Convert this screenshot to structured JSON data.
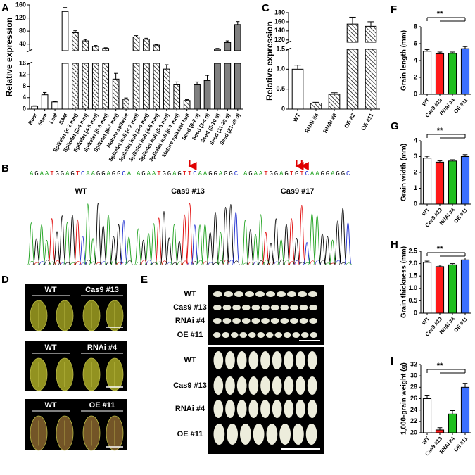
{
  "panel_labels": [
    "A",
    "B",
    "C",
    "D",
    "E",
    "F",
    "G",
    "H",
    "I"
  ],
  "chart_data": [
    {
      "type": "bar",
      "y_label": "Relative expression",
      "categories": [
        "Root",
        "Stem",
        "Leaf",
        "SAM",
        "Spikelet (< 2 mm)",
        "Spikelet (2-4 mm)",
        "Spikelet (4-5 mm)",
        "Spikelet (5-6 mm)",
        "Spikelet (6-7 mm)",
        "Mature spikelet",
        "Spikelet hull (< 2 mm)",
        "Spikelet hull (2-4 mm)",
        "Spikelet hull (4-5 mm)",
        "Spikelet hull (5-6 mm)",
        "Spikelet hull (6-7 mm)",
        "Mature spikelet hull",
        "Seed (0-2 d)",
        "Seed (3-4 d)",
        "Seed (5-10 d)",
        "Seed (11-20 d)",
        "Seed (21-29 d)"
      ],
      "values": [
        1,
        5,
        2.5,
        140,
        75,
        50,
        33,
        27,
        10.5,
        3.5,
        62,
        55,
        37,
        14,
        8.5,
        3,
        8.5,
        10,
        25,
        45,
        100
      ],
      "errors": [
        0.15,
        0.8,
        0.2,
        12,
        6,
        4,
        3,
        2,
        2,
        0.4,
        4,
        3,
        2,
        1.5,
        1,
        0.3,
        1,
        1.8,
        2,
        5,
        9
      ],
      "fills": [
        "white",
        "white",
        "white",
        "white",
        "hatch",
        "hatch",
        "hatch",
        "hatch",
        "hatch",
        "hatch",
        "hatch",
        "hatch",
        "hatch",
        "hatch",
        "hatch",
        "hatch",
        "gray",
        "gray",
        "gray",
        "gray",
        "gray"
      ],
      "broken_axis": [
        {
          "ylim": [
            0,
            16
          ],
          "yticks": [
            0,
            4,
            8,
            12,
            16
          ]
        },
        {
          "ylim": [
            20,
            160
          ],
          "yticks": [
            40,
            80,
            120,
            160
          ]
        }
      ]
    },
    {
      "type": "bar",
      "y_label": "Relative expression",
      "categories": [
        "WT",
        "RNAi #4",
        "RNAi #8",
        "OE #2",
        "OE #11"
      ],
      "values": [
        1,
        0.15,
        0.37,
        155,
        150
      ],
      "errors": [
        0.1,
        0.02,
        0.04,
        15,
        10
      ],
      "fills": [
        "white",
        "hatch",
        "hatch",
        "hatch",
        "hatch"
      ],
      "broken_axis": [
        {
          "ylim": [
            0,
            1.5
          ],
          "yticks": [
            0,
            0.5,
            {
              "value": 1,
              "label": "1.0"
            },
            1.5
          ]
        },
        {
          "ylim": [
            115,
            180
          ],
          "yticks": [
            120,
            140,
            160,
            180
          ]
        }
      ]
    },
    {
      "type": "bar",
      "y_label": "Grain length (mm)",
      "categories": [
        "WT",
        "Cas9 #13",
        "RNAi #4",
        "OE #11"
      ],
      "values": [
        5.1,
        4.8,
        4.85,
        5.4
      ],
      "errors": [
        0.2,
        0.2,
        0.15,
        0.25
      ],
      "colors": [
        "#ffffff",
        "#ff1a1a",
        "#1fbf1f",
        "#3b6fff"
      ],
      "ylim": [
        0,
        8
      ],
      "yticks": [
        0,
        2,
        4,
        6,
        8
      ],
      "annotation": "**"
    },
    {
      "type": "bar",
      "y_label": "Grain width (mm)",
      "categories": [
        "WT",
        "Cas9 #13",
        "RNAi #4",
        "OE #11"
      ],
      "values": [
        2.9,
        2.65,
        2.72,
        3.0
      ],
      "errors": [
        0.12,
        0.08,
        0.08,
        0.12
      ],
      "colors": [
        "#ffffff",
        "#ff1a1a",
        "#1fbf1f",
        "#3b6fff"
      ],
      "ylim": [
        0,
        4
      ],
      "yticks": [
        0,
        1,
        2,
        3,
        4
      ],
      "annotation": "**"
    },
    {
      "type": "bar",
      "y_label": "Grain thickness (mm)",
      "categories": [
        "WT",
        "Cas9 #13",
        "RNAi #4",
        "OE #11"
      ],
      "values": [
        2.05,
        1.88,
        1.95,
        2.15
      ],
      "errors": [
        0.05,
        0.06,
        0.05,
        0.08
      ],
      "colors": [
        "#ffffff",
        "#ff1a1a",
        "#1fbf1f",
        "#3b6fff"
      ],
      "ylim": [
        0,
        2.5
      ],
      "yticks": [
        0,
        0.5,
        {
          "value": 1,
          "label": "1.0"
        },
        1.5,
        {
          "value": 2,
          "label": "2.0"
        },
        2.5
      ],
      "annotation": "**"
    },
    {
      "type": "bar",
      "y_label": "1,000-grain weight (g)",
      "categories": [
        "WT",
        "Cas9 #13",
        "RNAi #4",
        "OE #11"
      ],
      "values": [
        26,
        20.5,
        23.3,
        28
      ],
      "errors": [
        0.5,
        0.4,
        0.6,
        0.7
      ],
      "colors": [
        "#ffffff",
        "#ff1a1a",
        "#1fbf1f",
        "#3b6fff"
      ],
      "ylim": [
        20,
        32
      ],
      "yticks": [
        20,
        22,
        24,
        26,
        28,
        30,
        32
      ],
      "annotation": "**"
    }
  ],
  "sequencing": {
    "traces": [
      {
        "sequence": "AGAATGGAGTCAAGGAGGCA",
        "label": "WT"
      },
      {
        "sequence": "AGAATGGAGTTCAAGGAGGC",
        "label": "Cas9 #13"
      },
      {
        "sequence": "AGAATGGAGTGTCAAGGAGGC",
        "label": "Cas9 #17"
      }
    ]
  },
  "grain_photos": {
    "groups": [
      {
        "control": "WT",
        "line": "Cas9 #13"
      },
      {
        "control": "WT",
        "line": "RNAi #4"
      },
      {
        "control": "WT",
        "line": "OE #11"
      }
    ]
  },
  "seed_rows": {
    "top": [
      "WT",
      "Cas9 #13",
      "RNAi #4",
      "OE #11"
    ],
    "bottom": [
      "WT",
      "Cas9 #13",
      "RNAi #4",
      "OE #11"
    ]
  }
}
